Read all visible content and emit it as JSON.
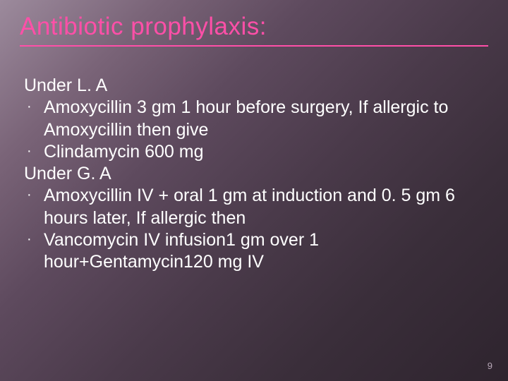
{
  "slide": {
    "title": "Antibiotic prophylaxis:",
    "title_color": "#ff4fa8",
    "title_fontsize": 35,
    "underline_color": "#ff4fa8",
    "background_gradient": [
      "#9c8a9c",
      "#7a6478",
      "#5e4a5e",
      "#4a3a4a",
      "#3a2e3a",
      "#2e242e"
    ],
    "body_color": "#ffffff",
    "body_fontsize": 25,
    "bullet_glyph": "·",
    "sections": {
      "la_heading": "Under L. A",
      "la_bullet1": "Amoxycillin 3 gm 1 hour before surgery, If allergic to Amoxycillin then give",
      "la_bullet2": "Clindamycin 600 mg",
      "ga_heading": "Under G. A",
      "ga_bullet1": "Amoxycillin IV + oral 1 gm at induction and 0. 5 gm 6 hours later, If allergic then",
      "ga_bullet2": "Vancomycin IV infusion1 gm over 1 hour+Gentamycin120 mg IV"
    },
    "page_number": "9",
    "page_number_color": "#b8a8b8",
    "page_number_fontsize": 13
  }
}
